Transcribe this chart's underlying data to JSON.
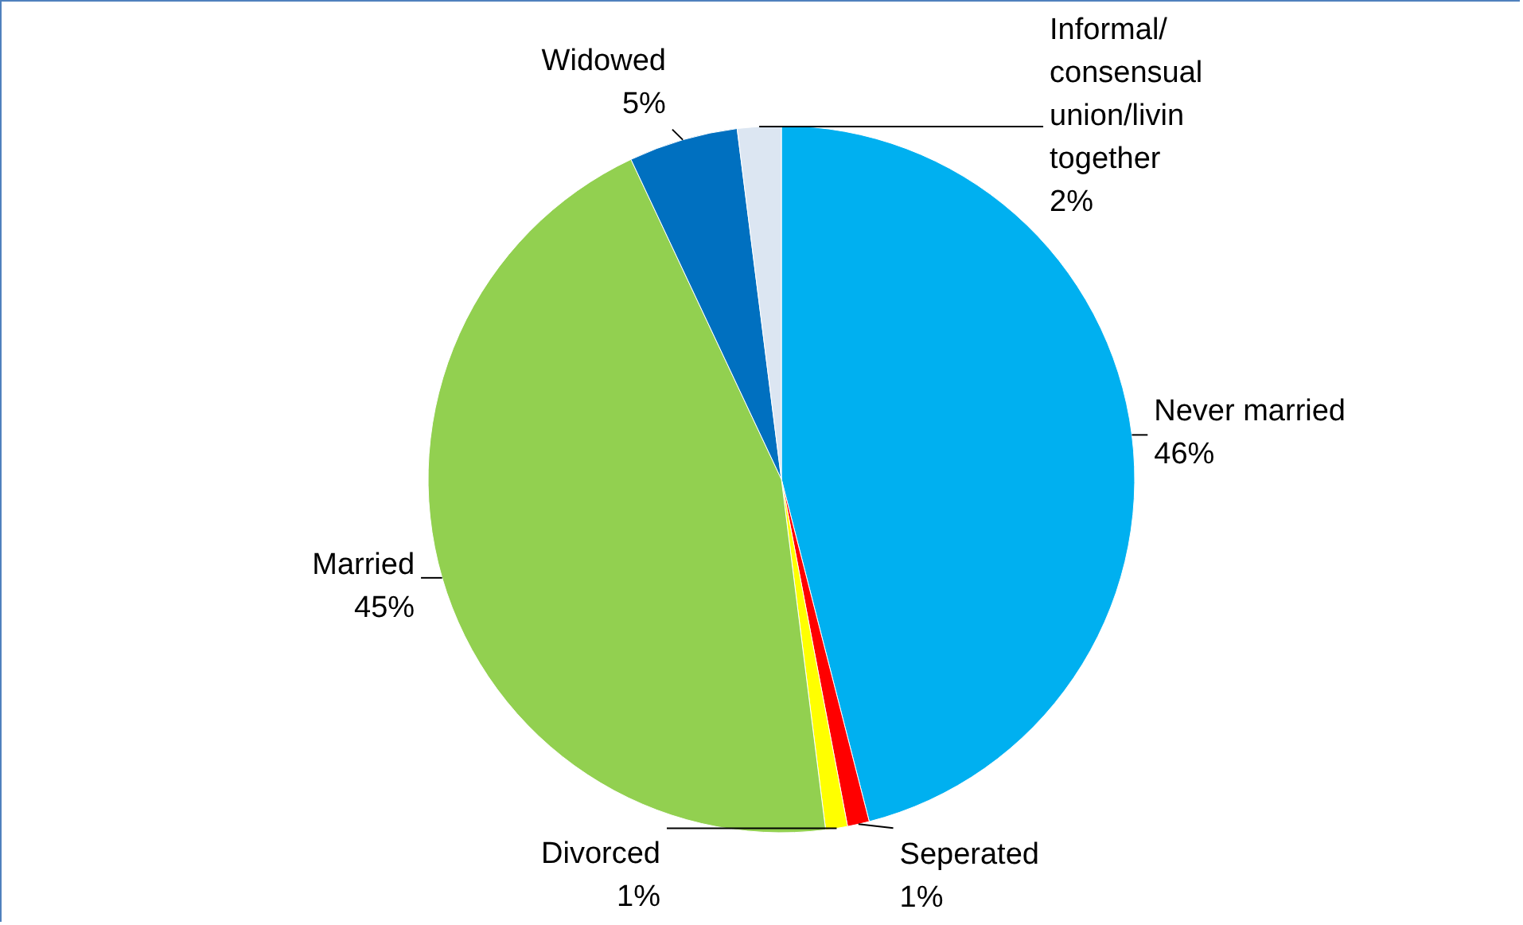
{
  "chart_data": {
    "type": "pie",
    "categories": [
      "Never married",
      "Seperated",
      "Divorced",
      "Married",
      "Widowed",
      "Informal/ consensual union/livin together"
    ],
    "values": [
      46,
      1,
      1,
      45,
      5,
      2
    ],
    "colors": [
      "#00b0f0",
      "#ff0000",
      "#ffff00",
      "#92d050",
      "#0070c0",
      "#dce6f2"
    ],
    "value_labels": [
      "46%",
      "1%",
      "1%",
      "45%",
      "5%",
      "2%"
    ]
  }
}
